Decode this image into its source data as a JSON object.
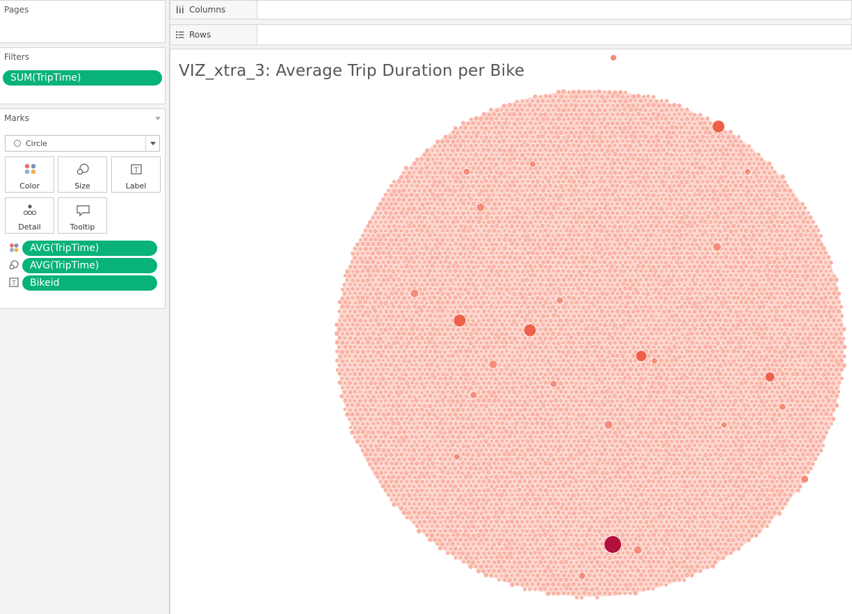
{
  "cards": {
    "pages": {
      "title": "Pages"
    },
    "filters": {
      "title": "Filters",
      "pills": [
        "SUM(TripTime)"
      ]
    },
    "marks": {
      "title": "Marks",
      "mark_type": "Circle",
      "buttons": [
        {
          "label": "Color",
          "icon": "color-icon"
        },
        {
          "label": "Size",
          "icon": "size-icon"
        },
        {
          "label": "Label",
          "icon": "label-icon"
        },
        {
          "label": "Detail",
          "icon": "detail-icon"
        },
        {
          "label": "Tooltip",
          "icon": "tooltip-icon"
        }
      ],
      "encodings": [
        {
          "icon": "color-icon",
          "field": "AVG(TripTime)"
        },
        {
          "icon": "size-icon",
          "field": "AVG(TripTime)"
        },
        {
          "icon": "label-icon",
          "field": "Bikeid"
        }
      ]
    }
  },
  "shelves": {
    "columns": {
      "label": "Columns"
    },
    "rows": {
      "label": "Rows"
    }
  },
  "viz": {
    "title": "VIZ_xtra_3: Average Trip Duration per Bike",
    "chart_data": {
      "type": "scatter",
      "mark": "packed-bubble",
      "color_field": "AVG(TripTime)",
      "size_field": "AVG(TripTime)",
      "colors": {
        "base": "#f9b3a4",
        "mid": "#f58c78",
        "high": "#ee6148",
        "max": "#b3113c"
      }
    }
  }
}
